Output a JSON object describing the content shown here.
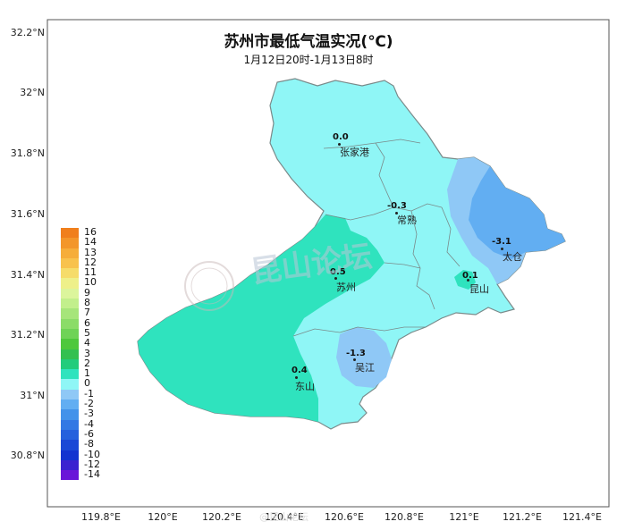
{
  "map": {
    "title": "苏州市最低气温实况(℃)",
    "subtitle": "1月12日20时-1月13日8时",
    "lat_labels": [
      "32.2°N",
      "32°N",
      "31.8°N",
      "31.6°N",
      "31.4°N",
      "31.2°N",
      "31°N",
      "30.8°N"
    ],
    "lon_labels": [
      "119.8°E",
      "120°E",
      "120.2°E",
      "120.4°E",
      "120.6°E",
      "120.8°E",
      "121°E",
      "121.2°E",
      "121.4°E"
    ],
    "colors": {
      "background": "#ffffff",
      "zone_neg1_to_0": "#8ff6f6",
      "zone_0_to_1": "#2fe3be",
      "zone_neg2_to_neg1": "#8fc8f6",
      "zone_neg3_to_neg2": "#62aef2",
      "boundary": "#7a8a8a"
    },
    "stations": [
      {
        "name": "张家港",
        "value": "0.0"
      },
      {
        "name": "常熟",
        "value": "-0.3"
      },
      {
        "name": "太仓",
        "value": "-3.1"
      },
      {
        "name": "昆山",
        "value": "0.1"
      },
      {
        "name": "苏州",
        "value": "0.5"
      },
      {
        "name": "吴江",
        "value": "-1.3"
      },
      {
        "name": "东山",
        "value": "0.4"
      }
    ],
    "legend": [
      {
        "label": "16",
        "color": "#f07f1c"
      },
      {
        "label": "14",
        "color": "#f3962a"
      },
      {
        "label": "13",
        "color": "#f6ad3a"
      },
      {
        "label": "12",
        "color": "#f8c24d"
      },
      {
        "label": "11",
        "color": "#f6dc6a"
      },
      {
        "label": "10",
        "color": "#eef08a"
      },
      {
        "label": "9",
        "color": "#dcf59c"
      },
      {
        "label": "8",
        "color": "#c2ef8c"
      },
      {
        "label": "7",
        "color": "#a6e57a"
      },
      {
        "label": "6",
        "color": "#8bdc68"
      },
      {
        "label": "5",
        "color": "#6fd356"
      },
      {
        "label": "4",
        "color": "#4ec83c"
      },
      {
        "label": "3",
        "color": "#33c050"
      },
      {
        "label": "2",
        "color": "#22cc7c"
      },
      {
        "label": "1",
        "color": "#2fe3be"
      },
      {
        "label": "0",
        "color": "#8ff6f6"
      },
      {
        "label": "-1",
        "color": "#8fc8f6"
      },
      {
        "label": "-2",
        "color": "#62aef2"
      },
      {
        "label": "-3",
        "color": "#4292ea"
      },
      {
        "label": "-4",
        "color": "#3278e4"
      },
      {
        "label": "-6",
        "color": "#2560dd"
      },
      {
        "label": "-8",
        "color": "#1a48d6"
      },
      {
        "label": "-10",
        "color": "#1334d0"
      },
      {
        "label": "-12",
        "color": "#3a22d0"
      },
      {
        "label": "-14",
        "color": "#6a16d8"
      }
    ],
    "watermark": "昆山论坛",
    "weibo_mark": "@昆山论坛"
  }
}
